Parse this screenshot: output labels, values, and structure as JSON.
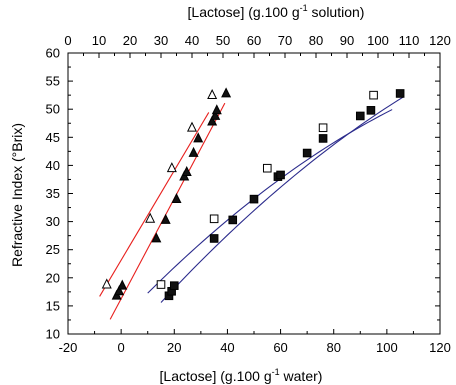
{
  "chart_data": {
    "type": "scatter",
    "x_axis_bottom": {
      "label": "[Lactose] (g.100 g-1 water)",
      "label_prefix": "[Lactose] (g.100 g",
      "label_sup": "-1",
      "label_suffix": " water)",
      "ticks": [
        -20,
        0,
        20,
        40,
        60,
        80,
        100,
        120
      ],
      "range": [
        -20,
        120
      ]
    },
    "x_axis_top": {
      "label": "[Lactose] (g.100 g-1 solution)",
      "label_prefix": "[Lactose] (g.100 g",
      "label_sup": "-1",
      "label_suffix": " solution)",
      "ticks": [
        0,
        10,
        20,
        30,
        40,
        50,
        60,
        70,
        80,
        90,
        100,
        110,
        120
      ],
      "range": [
        0,
        120
      ]
    },
    "y_axis": {
      "label": "Refractive Index (°Brix)",
      "ticks": [
        10,
        15,
        20,
        25,
        30,
        35,
        40,
        45,
        50,
        55,
        60
      ],
      "range": [
        10,
        60
      ]
    },
    "grid": false,
    "series": [
      {
        "axis": "top",
        "marker": "triangle-open",
        "points": [
          [
            12.5,
            18.8
          ],
          [
            26.5,
            30.5
          ],
          [
            33.5,
            39.5
          ],
          [
            40.0,
            46.7
          ],
          [
            46.5,
            52.5
          ]
        ]
      },
      {
        "axis": "top",
        "marker": "triangle-filled",
        "points": [
          [
            15.7,
            16.8
          ],
          [
            16.5,
            17.6
          ],
          [
            17.5,
            18.6
          ],
          [
            28.5,
            27.0
          ],
          [
            31.5,
            30.3
          ],
          [
            35.0,
            34.0
          ],
          [
            37.5,
            38.0
          ],
          [
            38.3,
            38.8
          ],
          [
            40.5,
            42.2
          ],
          [
            42.0,
            44.8
          ],
          [
            46.5,
            47.8
          ],
          [
            47.5,
            48.8
          ],
          [
            48.0,
            49.8
          ],
          [
            51.0,
            52.8
          ]
        ]
      },
      {
        "axis": "bottom",
        "marker": "square-open",
        "points": [
          [
            15,
            18.8
          ],
          [
            35,
            30.5
          ],
          [
            55,
            39.5
          ],
          [
            76,
            46.7
          ],
          [
            95,
            52.5
          ]
        ]
      },
      {
        "axis": "bottom",
        "marker": "square-filled",
        "points": [
          [
            18,
            16.8
          ],
          [
            19,
            17.6
          ],
          [
            20,
            18.6
          ],
          [
            35,
            27.0
          ],
          [
            42,
            30.3
          ],
          [
            50,
            34.0
          ],
          [
            59,
            38.0
          ],
          [
            60,
            38.3
          ],
          [
            70,
            42.2
          ],
          [
            76,
            44.8
          ],
          [
            90,
            48.8
          ],
          [
            94,
            49.8
          ],
          [
            105,
            52.8
          ]
        ]
      }
    ],
    "fits": [
      {
        "axis": "top",
        "color": "#e8201e",
        "kind": "line",
        "x_range": [
          10.2,
          45.4
        ],
        "slope": 0.93,
        "intercept": 7.2
      },
      {
        "axis": "top",
        "color": "#e8201e",
        "kind": "line",
        "x_range": [
          13.6,
          50.6
        ],
        "slope": 1.04,
        "intercept": -1.55
      },
      {
        "axis": "bottom",
        "color": "#2b2b8c",
        "kind": "quadratic",
        "x_range": [
          10,
          102
        ],
        "coeffs": [
          12.45,
          0.495,
          -0.00125
        ]
      },
      {
        "axis": "bottom",
        "color": "#2b2b8c",
        "kind": "quadratic",
        "x_range": [
          15,
          106
        ],
        "coeffs": [
          7.72,
          0.544,
          -0.00118
        ]
      }
    ],
    "colors": {
      "red_fit": "#e8201e",
      "blue_fit": "#2b2b8c",
      "marker": "#000000"
    }
  }
}
